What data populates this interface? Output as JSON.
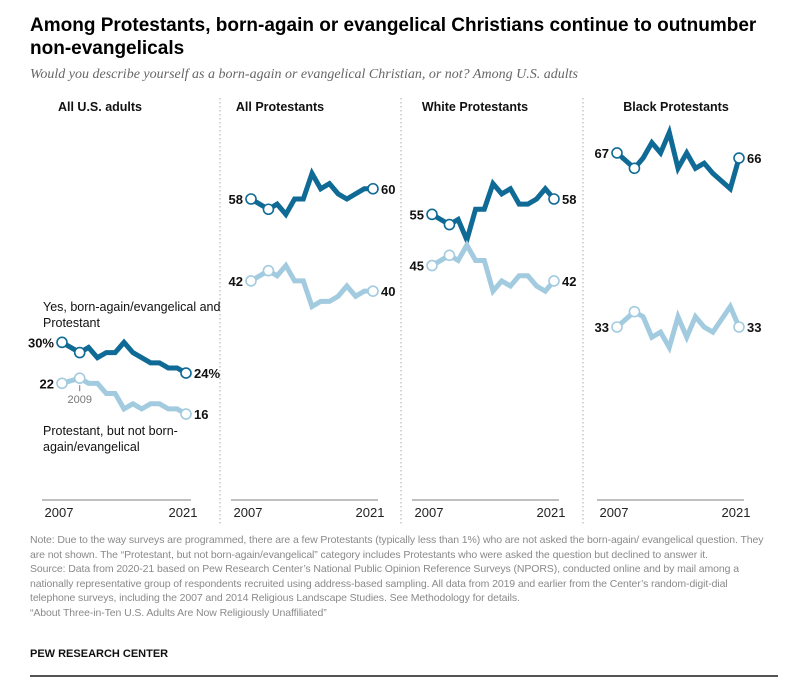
{
  "title": "Among Protestants, born-again or evangelical Christians continue to outnumber non-evangelicals",
  "subtitle": "Would you describe yourself as a born-again or evangelical Christian, or not? Among U.S. adults",
  "notes": {
    "note": "Note: Due to the way surveys are programmed, there are a few Protestants (typically less than 1%) who are not asked the born-again/ evangelical question. They are not shown. The “Protestant, but not born-again/evangelical” category includes Protestants who were asked the question but declined to answer it.",
    "source": "Source: Data from 2020-21 based on Pew Research Center’s National Public Opinion Reference Surveys (NPORS), conducted online and by mail among a nationally representative group of respondents recruited using address-based sampling. All data from 2019 and earlier from the Center’s random-digit-dial telephone surveys, including the 2007 and 2014 Religious Landscape Studies. See Methodology for details.",
    "report": "“About Three-in-Ten U.S. Adults Are Now Religiously Unaffiliated”"
  },
  "brand": "PEW RESEARCH CENTER",
  "annotations": {
    "evangelical": "Yes, born-again/evangelical and Protestant",
    "non_evangelical": "Protestant, but not born-again/evangelical",
    "year_marker": "2009"
  },
  "colors": {
    "evangelical": "#0f6a95",
    "non_evangelical": "#a3cbe0",
    "axis": "#999999",
    "divider": "#aaaaaa"
  },
  "chart_data": [
    {
      "type": "line",
      "title": "All U.S. adults",
      "xlabel_start": "2007",
      "xlabel_end": "2021",
      "ylim": [
        0,
        100
      ],
      "units": "%",
      "series": [
        {
          "name": "Yes, born-again/evangelical and Protestant",
          "x": [
            2007,
            2009,
            2010,
            2011,
            2012,
            2013,
            2014,
            2015,
            2016,
            2017,
            2018,
            2019,
            2020,
            2021
          ],
          "values": [
            30,
            28,
            29,
            27,
            28,
            28,
            30,
            28,
            27,
            26,
            26,
            25,
            25,
            24
          ],
          "start_label": "30%",
          "end_label": "24%"
        },
        {
          "name": "Protestant, but not born-again/evangelical",
          "x": [
            2007,
            2009,
            2010,
            2011,
            2012,
            2013,
            2014,
            2015,
            2016,
            2017,
            2018,
            2019,
            2020,
            2021
          ],
          "values": [
            22,
            23,
            22,
            22,
            20,
            20,
            17,
            18,
            17,
            18,
            18,
            17,
            17,
            16
          ],
          "start_label": "22",
          "end_label": "16"
        }
      ]
    },
    {
      "type": "line",
      "title": "All Protestants",
      "xlabel_start": "2007",
      "xlabel_end": "2021",
      "ylim": [
        0,
        100
      ],
      "units": "%",
      "series": [
        {
          "name": "Yes, born-again/evangelical",
          "x": [
            2007,
            2009,
            2010,
            2011,
            2012,
            2013,
            2014,
            2015,
            2016,
            2017,
            2018,
            2019,
            2020,
            2021
          ],
          "values": [
            58,
            56,
            57,
            55,
            58,
            58,
            63,
            60,
            61,
            59,
            58,
            59,
            60,
            60
          ],
          "start_label": "58",
          "end_label": "60"
        },
        {
          "name": "Not born-again/evangelical",
          "x": [
            2007,
            2009,
            2010,
            2011,
            2012,
            2013,
            2014,
            2015,
            2016,
            2017,
            2018,
            2019,
            2020,
            2021
          ],
          "values": [
            42,
            44,
            43,
            45,
            42,
            42,
            37,
            38,
            38,
            39,
            41,
            39,
            40,
            40
          ],
          "start_label": "42",
          "end_label": "40"
        }
      ]
    },
    {
      "type": "line",
      "title": "White Protestants",
      "xlabel_start": "2007",
      "xlabel_end": "2021",
      "ylim": [
        0,
        100
      ],
      "units": "%",
      "series": [
        {
          "name": "Yes, born-again/evangelical",
          "x": [
            2007,
            2009,
            2010,
            2011,
            2012,
            2013,
            2014,
            2015,
            2016,
            2017,
            2018,
            2019,
            2020,
            2021
          ],
          "values": [
            55,
            53,
            54,
            50,
            56,
            56,
            61,
            59,
            60,
            57,
            57,
            58,
            60,
            58
          ],
          "start_label": "55",
          "end_label": "58"
        },
        {
          "name": "Not born-again/evangelical",
          "x": [
            2007,
            2009,
            2010,
            2011,
            2012,
            2013,
            2014,
            2015,
            2016,
            2017,
            2018,
            2019,
            2020,
            2021
          ],
          "values": [
            45,
            47,
            46,
            49,
            46,
            46,
            40,
            42,
            41,
            43,
            43,
            41,
            40,
            42
          ],
          "start_label": "45",
          "end_label": "42"
        }
      ]
    },
    {
      "type": "line",
      "title": "Black Protestants",
      "xlabel_start": "2007",
      "xlabel_end": "2021",
      "ylim": [
        0,
        100
      ],
      "units": "%",
      "series": [
        {
          "name": "Yes, born-again/evangelical",
          "x": [
            2007,
            2009,
            2010,
            2011,
            2012,
            2013,
            2014,
            2015,
            2016,
            2017,
            2018,
            2020,
            2021
          ],
          "values": [
            67,
            64,
            66,
            69,
            67,
            71,
            64,
            67,
            64,
            65,
            63,
            60,
            66
          ],
          "start_label": "67",
          "end_label": "66"
        },
        {
          "name": "Not born-again/evangelical",
          "x": [
            2007,
            2009,
            2010,
            2011,
            2012,
            2013,
            2014,
            2015,
            2016,
            2017,
            2018,
            2020,
            2021
          ],
          "values": [
            33,
            36,
            35,
            31,
            32,
            29,
            35,
            31,
            35,
            33,
            32,
            37,
            33
          ],
          "start_label": "33",
          "end_label": "33"
        }
      ]
    }
  ]
}
